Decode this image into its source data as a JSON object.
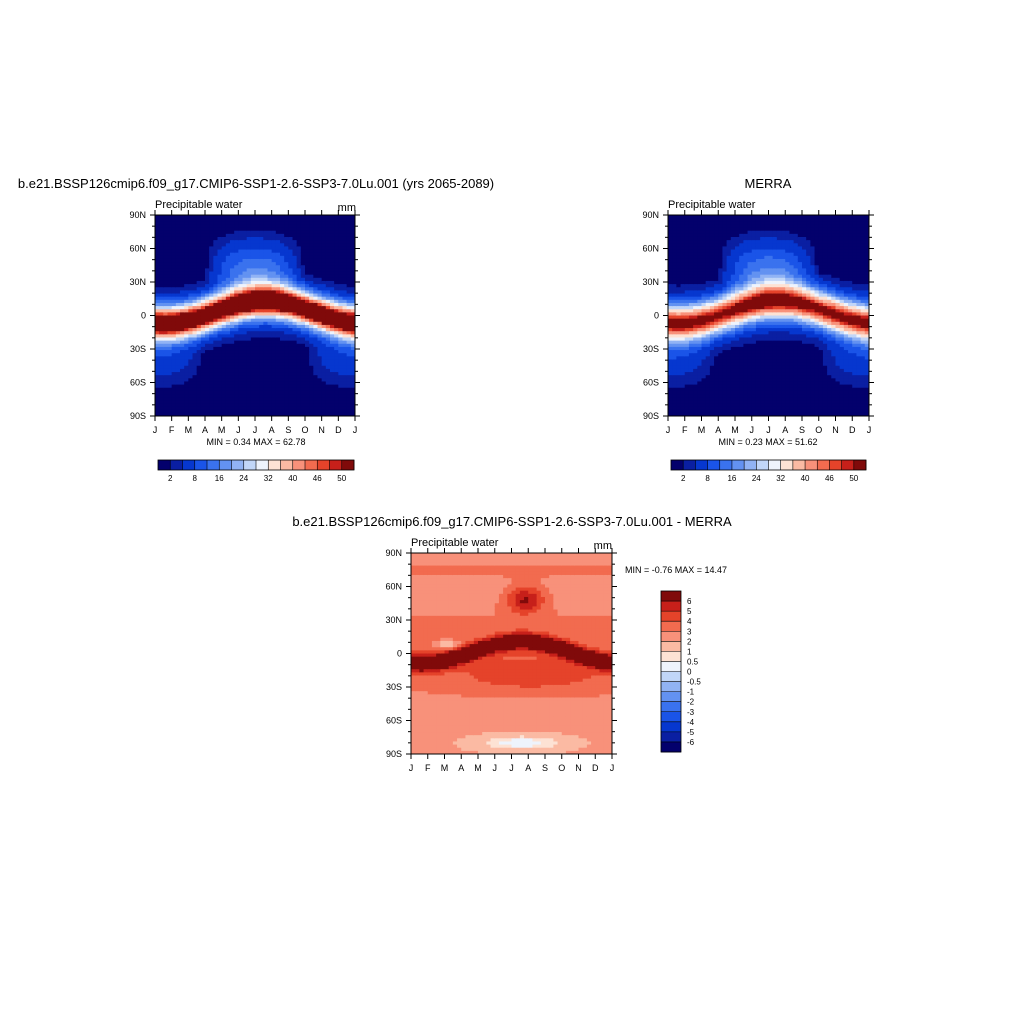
{
  "panels": [
    {
      "title": "b.e21.BSSP126cmip6.f09_g17.CMIP6-SSP1-2.6-SSP3-7.0Lu.001 (yrs 2065-2089)",
      "left_label": "Precipitable water",
      "right_label": "mm",
      "stats": "MIN =   0.34 MAX =  62.78"
    },
    {
      "title": "MERRA",
      "left_label": "Precipitable water",
      "right_label": "",
      "stats": "MIN =   0.23 MAX =  51.62"
    },
    {
      "title": "b.e21.BSSP126cmip6.f09_g17.CMIP6-SSP1-2.6-SSP3-7.0Lu.001 - MERRA",
      "left_label": "Precipitable water",
      "right_label": "mm",
      "stats": "MIN =  -0.76 MAX =  14.47"
    }
  ],
  "chart_data": [
    {
      "type": "heatmap",
      "title": "b.e21.BSSP126cmip6.f09_g17.CMIP6-SSP1-2.6-SSP3-7.0Lu.001 (yrs 2065-2089)",
      "x_ticks": [
        "J",
        "F",
        "M",
        "A",
        "M",
        "J",
        "J",
        "A",
        "S",
        "O",
        "N",
        "D",
        "J"
      ],
      "y_ticks": [
        "90N",
        "60N",
        "30N",
        "0",
        "30S",
        "60S",
        "90S"
      ],
      "xlabel": "",
      "ylabel": "",
      "min": 0.34,
      "max": 62.78,
      "colorbar": {
        "levels": [
          2,
          4,
          8,
          12,
          16,
          20,
          24,
          28,
          32,
          36,
          40,
          44,
          46,
          48,
          50
        ],
        "labels": [
          "2",
          "8",
          "16",
          "24",
          "32",
          "40",
          "46",
          "50"
        ],
        "colors": [
          "#03006c",
          "#0a1fa2",
          "#0637cf",
          "#1a54e8",
          "#3a72ee",
          "#6392f1",
          "#91b3f4",
          "#c1d6f8",
          "#eef3fc",
          "#fde2d4",
          "#fbbaa3",
          "#f8917a",
          "#f26b4f",
          "#e5432a",
          "#c7201a",
          "#800a0a"
        ]
      }
    },
    {
      "type": "heatmap",
      "title": "MERRA",
      "x_ticks": [
        "J",
        "F",
        "M",
        "A",
        "M",
        "J",
        "J",
        "A",
        "S",
        "O",
        "N",
        "D",
        "J"
      ],
      "y_ticks": [
        "90N",
        "60N",
        "30N",
        "0",
        "30S",
        "60S",
        "90S"
      ],
      "xlabel": "",
      "ylabel": "",
      "min": 0.23,
      "max": 51.62,
      "colorbar": {
        "levels": [
          2,
          4,
          8,
          12,
          16,
          20,
          24,
          28,
          32,
          36,
          40,
          44,
          46,
          48,
          50
        ],
        "labels": [
          "2",
          "8",
          "16",
          "24",
          "32",
          "40",
          "46",
          "50"
        ],
        "colors": [
          "#03006c",
          "#0a1fa2",
          "#0637cf",
          "#1a54e8",
          "#3a72ee",
          "#6392f1",
          "#91b3f4",
          "#c1d6f8",
          "#eef3fc",
          "#fde2d4",
          "#fbbaa3",
          "#f8917a",
          "#f26b4f",
          "#e5432a",
          "#c7201a",
          "#800a0a"
        ]
      }
    },
    {
      "type": "heatmap",
      "title": "b.e21.BSSP126cmip6.f09_g17.CMIP6-SSP1-2.6-SSP3-7.0Lu.001 - MERRA",
      "x_ticks": [
        "J",
        "F",
        "M",
        "A",
        "M",
        "J",
        "J",
        "A",
        "S",
        "O",
        "N",
        "D",
        "J"
      ],
      "y_ticks": [
        "90N",
        "60N",
        "30N",
        "0",
        "30S",
        "60S",
        "90S"
      ],
      "xlabel": "",
      "ylabel": "",
      "min": -0.76,
      "max": 14.47,
      "colorbar": {
        "levels": [
          -6,
          -5,
          -4,
          -3,
          -2,
          -1,
          -0.5,
          0,
          0.5,
          1,
          2,
          3,
          4,
          5,
          6
        ],
        "labels": [
          "6",
          "5",
          "4",
          "3",
          "2",
          "1",
          "0.5",
          "0",
          "-0.5",
          "-1",
          "-2",
          "-3",
          "-4",
          "-5",
          "-6"
        ],
        "colors": [
          "#03006c",
          "#0a1fa2",
          "#0637cf",
          "#1a54e8",
          "#3a72ee",
          "#6392f1",
          "#91b3f4",
          "#c1d6f8",
          "#eef3fc",
          "#fde2d4",
          "#fbbaa3",
          "#f8917a",
          "#f26b4f",
          "#e5432a",
          "#c7201a",
          "#800a0a"
        ]
      }
    }
  ]
}
